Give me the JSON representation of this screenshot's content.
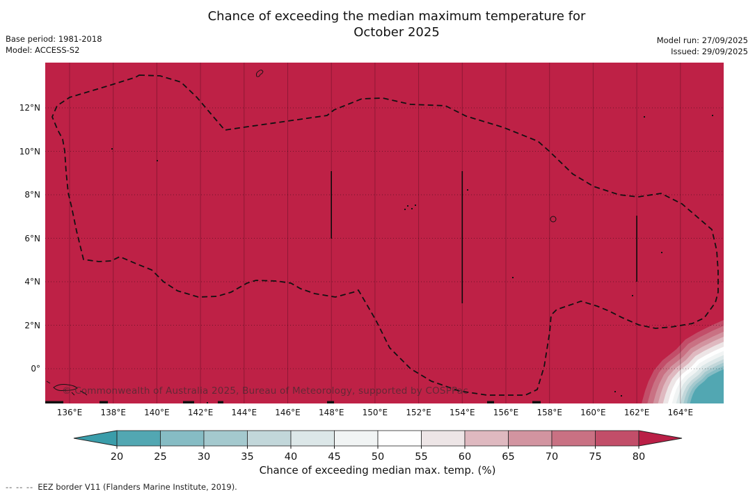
{
  "header": {
    "title_line1": "Chance of exceeding the median maximum temperature for",
    "title_line2": "October 2025",
    "base_period_label": "Base period: 1981-2018",
    "model_label": "Model: ACCESS-S2",
    "model_run_label": "Model run: 27/09/2025",
    "issued_label": "Issued: 29/09/2025"
  },
  "map": {
    "watermark": "© Commonwealth of Australia 2025, Bureau of Meteorology, supported by COSPPac",
    "fill_color": "#BE2146",
    "lat_ticks": [
      "12°N",
      "10°N",
      "8°N",
      "6°N",
      "4°N",
      "2°N",
      "0°"
    ],
    "lon_ticks": [
      "136°E",
      "138°E",
      "140°E",
      "142°E",
      "144°E",
      "146°E",
      "148°E",
      "150°E",
      "152°E",
      "154°E",
      "156°E",
      "158°E",
      "160°E",
      "162°E",
      "164°E"
    ],
    "eez_border_color": "#111111",
    "gridline_color_vertical": "rgba(40,0,15,0.30)",
    "gridline_color_horizontal": "rgba(0,0,0,0.55)"
  },
  "colorbar": {
    "ticks": [
      "20",
      "25",
      "30",
      "35",
      "40",
      "45",
      "50",
      "55",
      "60",
      "65",
      "70",
      "75",
      "80"
    ],
    "segment_colors": [
      "#52A7B2",
      "#86BCC4",
      "#A4C9CE",
      "#C2D7DA",
      "#DCE7E8",
      "#F1F4F4",
      "#FEFEFE",
      "#EDE5E6",
      "#DFB9C0",
      "#D294A0",
      "#C97183",
      "#C24E69"
    ],
    "left_arrow_color": "#3A9DAA",
    "right_arrow_color": "#BA1F46",
    "label": "Chance of exceeding median max. temp. (%)"
  },
  "footer": {
    "eez_legend_dashes": "--  --  --",
    "eez_legend_text": "EEZ border V11 (Flanders Marine Institute, 2019)."
  },
  "chart_data": {
    "type": "heatmap",
    "title": "Chance of exceeding the median maximum temperature for October 2025",
    "model": "ACCESS-S2",
    "base_period": "1981-2018",
    "model_run": "27/09/2025",
    "issued": "29/09/2025",
    "xlabel_ticks_lon_E": [
      136,
      138,
      140,
      142,
      144,
      146,
      148,
      150,
      152,
      154,
      156,
      158,
      160,
      162,
      164
    ],
    "ylabel_ticks_lat_N": [
      12,
      10,
      8,
      6,
      4,
      2,
      0
    ],
    "colorbar_ticks_percent": [
      20,
      25,
      30,
      35,
      40,
      45,
      50,
      55,
      60,
      65,
      70,
      75,
      80
    ],
    "colorbar_label": "Chance of exceeding median max. temp. (%)",
    "dominant_value": "greater than 80% over almost the entire domain (crimson fill)",
    "low_probability_region": "south-east corner near 163-166°E / 1°S-2°N, concentric contour bands descending to the 20-25% band (teal core)",
    "overlay": "dashed EEZ border loop (Federated States of Micronesia) plus solid meridian EEZ segments near 148°E, 154°E and 162°E"
  }
}
